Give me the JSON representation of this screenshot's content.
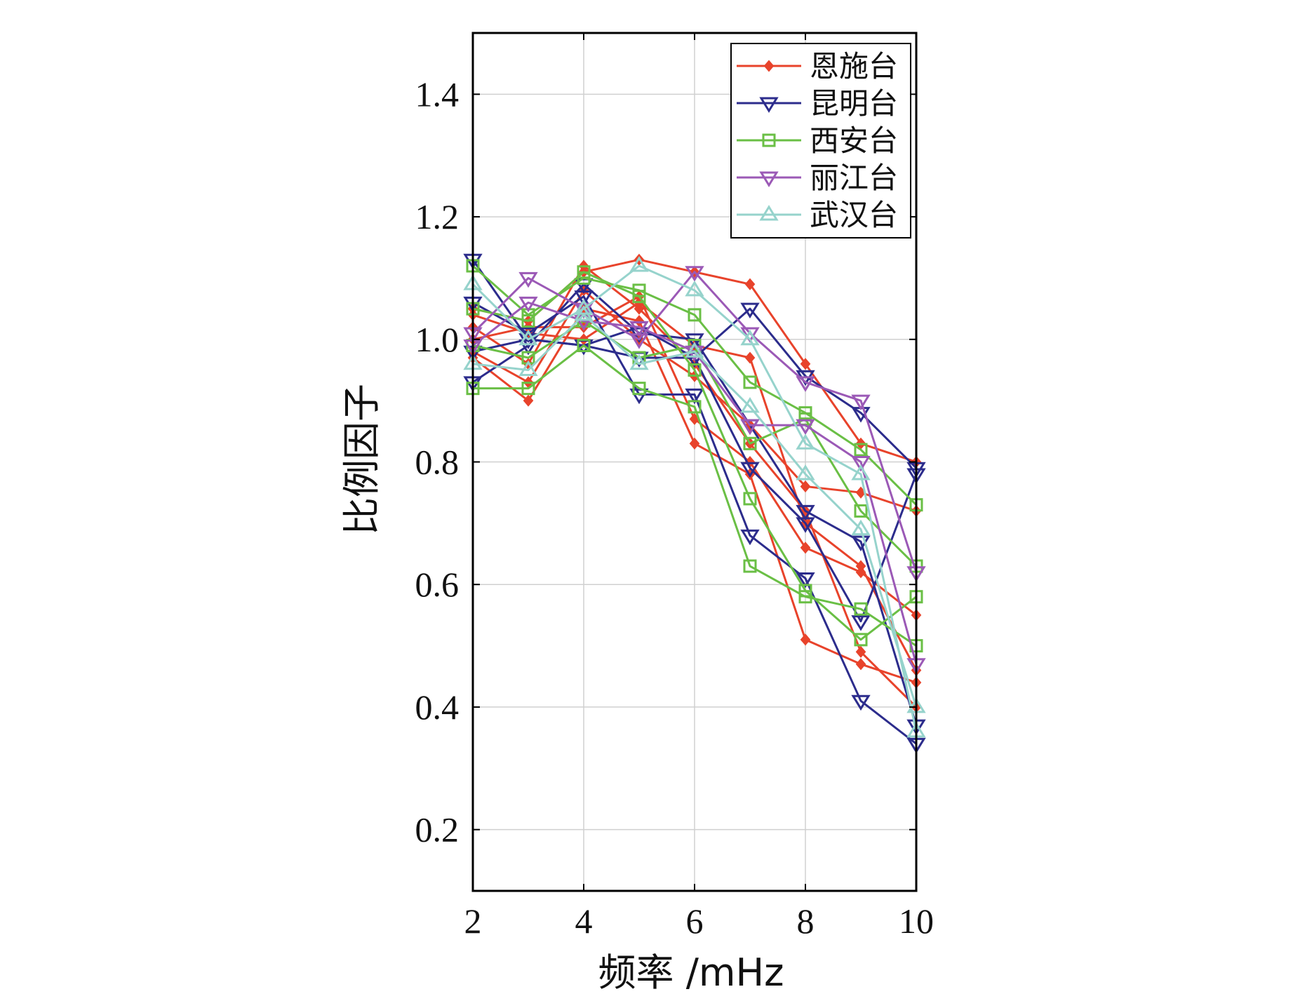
{
  "chart_data": {
    "type": "line",
    "xlabel": "频率 /mHz",
    "ylabel": "比例因子",
    "xlim": [
      2,
      10
    ],
    "ylim": [
      0.1,
      1.5
    ],
    "xticks": [
      "2",
      "4",
      "6",
      "8",
      "10"
    ],
    "yticks": [
      "0.2",
      "0.4",
      "0.6",
      "0.8",
      "1.0",
      "1.2",
      "1.4"
    ],
    "grid": true,
    "legend_position": "top-right",
    "x": [
      2,
      3,
      4,
      5,
      6,
      7,
      8,
      9,
      10
    ],
    "series": [
      {
        "name": "恩施台",
        "color": "#e8432b",
        "marker": "diamond",
        "is_legend": true,
        "values": [
          1.05,
          1.03,
          1.11,
          1.13,
          1.11,
          1.09,
          0.96,
          0.83,
          0.8
        ]
      },
      {
        "name": "恩施台",
        "color": "#e8432b",
        "marker": "diamond",
        "is_legend": false,
        "values": [
          1.02,
          0.96,
          1.12,
          1.05,
          0.96,
          0.83,
          0.72,
          0.49,
          0.4
        ]
      },
      {
        "name": "恩施台",
        "color": "#e8432b",
        "marker": "diamond",
        "is_legend": false,
        "values": [
          0.97,
          0.9,
          1.05,
          1.03,
          0.83,
          0.78,
          0.51,
          0.47,
          0.44
        ]
      },
      {
        "name": "恩施台",
        "color": "#e8432b",
        "marker": "diamond",
        "is_legend": false,
        "values": [
          1.0,
          1.02,
          1.02,
          1.07,
          0.87,
          0.8,
          0.66,
          0.62,
          0.55
        ]
      },
      {
        "name": "恩施台",
        "color": "#e8432b",
        "marker": "diamond",
        "is_legend": false,
        "values": [
          0.98,
          0.93,
          1.08,
          1.0,
          0.94,
          0.86,
          0.76,
          0.75,
          0.72
        ]
      },
      {
        "name": "恩施台",
        "color": "#e8432b",
        "marker": "diamond",
        "is_legend": false,
        "values": [
          1.04,
          1.01,
          1.0,
          1.06,
          0.99,
          0.97,
          0.7,
          0.63,
          0.46
        ]
      },
      {
        "name": "昆明台",
        "color": "#2c2c8c",
        "marker": "triangle-down",
        "is_legend": true,
        "values": [
          1.13,
          1.0,
          0.99,
          1.02,
          0.97,
          1.05,
          0.94,
          0.88,
          0.79
        ]
      },
      {
        "name": "昆明台",
        "color": "#2c2c8c",
        "marker": "triangle-down",
        "is_legend": false,
        "values": [
          1.06,
          1.01,
          1.07,
          0.91,
          0.91,
          0.68,
          0.61,
          0.41,
          0.34
        ]
      },
      {
        "name": "昆明台",
        "color": "#2c2c8c",
        "marker": "triangle-down",
        "is_legend": false,
        "values": [
          0.93,
          0.99,
          1.09,
          1.01,
          1.0,
          0.86,
          0.72,
          0.67,
          0.37
        ]
      },
      {
        "name": "昆明台",
        "color": "#2c2c8c",
        "marker": "triangle-down",
        "is_legend": false,
        "values": [
          0.98,
          1.0,
          0.99,
          0.97,
          0.97,
          0.79,
          0.7,
          0.54,
          0.78
        ]
      },
      {
        "name": "西安台",
        "color": "#6abf45",
        "marker": "square",
        "is_legend": true,
        "values": [
          1.12,
          1.04,
          1.1,
          1.08,
          1.04,
          0.93,
          0.88,
          0.82,
          0.73
        ]
      },
      {
        "name": "西安台",
        "color": "#6abf45",
        "marker": "square",
        "is_legend": false,
        "values": [
          0.92,
          0.92,
          0.99,
          0.92,
          0.89,
          0.63,
          0.58,
          0.56,
          0.5
        ]
      },
      {
        "name": "西安台",
        "color": "#6abf45",
        "marker": "square",
        "is_legend": false,
        "values": [
          1.05,
          1.03,
          1.11,
          1.07,
          0.95,
          0.74,
          0.59,
          0.51,
          0.58
        ]
      },
      {
        "name": "西安台",
        "color": "#6abf45",
        "marker": "square",
        "is_legend": false,
        "values": [
          0.99,
          0.97,
          1.03,
          0.97,
          0.99,
          0.83,
          0.87,
          0.72,
          0.63
        ]
      },
      {
        "name": "丽江台",
        "color": "#9b59b6",
        "marker": "triangle-down",
        "is_legend": true,
        "values": [
          1.01,
          1.1,
          1.05,
          1.0,
          1.11,
          1.01,
          0.93,
          0.9,
          0.62
        ]
      },
      {
        "name": "丽江台",
        "color": "#9b59b6",
        "marker": "triangle-down",
        "is_legend": false,
        "values": [
          0.99,
          1.06,
          1.03,
          1.02,
          0.98,
          0.86,
          0.86,
          0.8,
          0.47
        ]
      },
      {
        "name": "武汉台",
        "color": "#96d3cc",
        "marker": "triangle-up",
        "is_legend": true,
        "values": [
          1.09,
          1.0,
          1.05,
          1.12,
          1.08,
          1.0,
          0.83,
          0.78,
          0.36
        ]
      },
      {
        "name": "武汉台",
        "color": "#96d3cc",
        "marker": "triangle-up",
        "is_legend": false,
        "values": [
          0.96,
          0.95,
          1.04,
          0.96,
          0.98,
          0.89,
          0.78,
          0.69,
          0.4
        ]
      }
    ]
  }
}
